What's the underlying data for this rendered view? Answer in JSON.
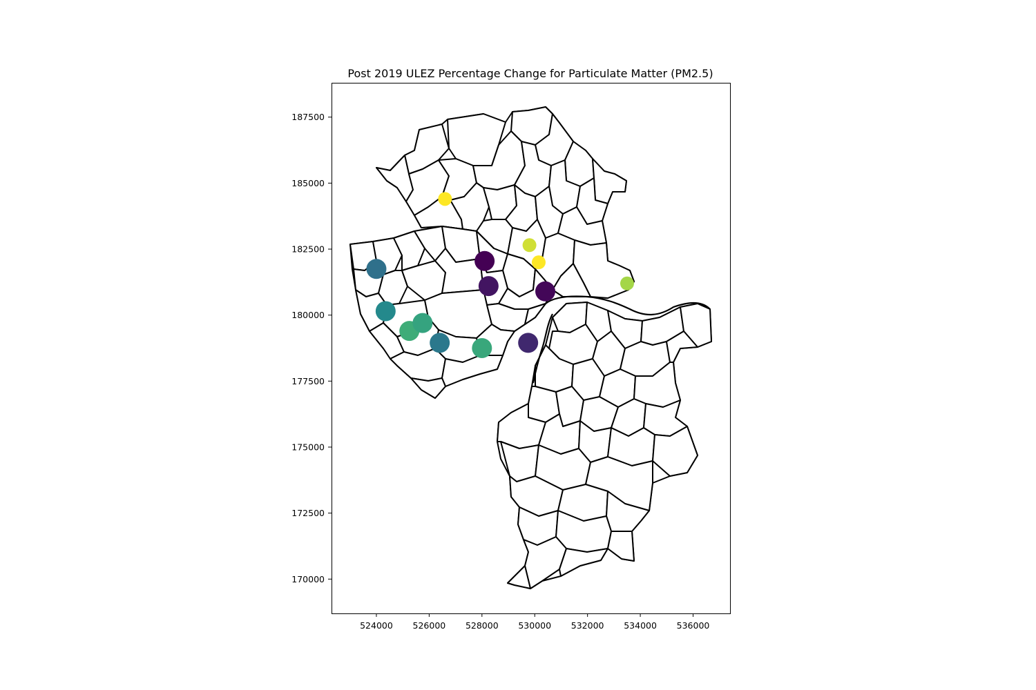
{
  "chart_data": {
    "type": "scatter",
    "title": "Post 2019 ULEZ Percentage Change for Particulate Matter (PM2.5)",
    "xlabel": "",
    "ylabel": "",
    "xlim": [
      522300,
      537400
    ],
    "ylim": [
      168700,
      188800
    ],
    "x_ticks": [
      524000,
      526000,
      528000,
      530000,
      532000,
      534000,
      536000
    ],
    "y_ticks": [
      170000,
      172500,
      175000,
      177500,
      180000,
      182500,
      185000,
      187500
    ],
    "x_tick_labels": [
      "524000",
      "526000",
      "528000",
      "530000",
      "532000",
      "534000",
      "536000"
    ],
    "y_tick_labels": [
      "170000",
      "172500",
      "175000",
      "177500",
      "180000",
      "182500",
      "185000",
      "187500"
    ],
    "grid": false,
    "legend": "none",
    "colormap": "viridis",
    "colormap_stops": [
      "#440154",
      "#3b528b",
      "#21918c",
      "#5ec962",
      "#fde725"
    ],
    "points": [
      {
        "x": 526600,
        "y": 184400,
        "value": 1.0,
        "size": 1.0
      },
      {
        "x": 529800,
        "y": 182650,
        "value": 0.93,
        "size": 1.0
      },
      {
        "x": 530150,
        "y": 182000,
        "value": 1.0,
        "size": 1.0
      },
      {
        "x": 533500,
        "y": 181200,
        "value": 0.86,
        "size": 1.0
      },
      {
        "x": 528100,
        "y": 182050,
        "value": 0.0,
        "size": 1.45
      },
      {
        "x": 528250,
        "y": 181100,
        "value": 0.06,
        "size": 1.45
      },
      {
        "x": 530400,
        "y": 180900,
        "value": 0.02,
        "size": 1.45
      },
      {
        "x": 529750,
        "y": 178950,
        "value": 0.12,
        "size": 1.45
      },
      {
        "x": 524000,
        "y": 181750,
        "value": 0.37,
        "size": 1.45
      },
      {
        "x": 524350,
        "y": 180150,
        "value": 0.47,
        "size": 1.45
      },
      {
        "x": 525250,
        "y": 179400,
        "value": 0.62,
        "size": 1.45
      },
      {
        "x": 525750,
        "y": 179700,
        "value": 0.58,
        "size": 1.45
      },
      {
        "x": 526400,
        "y": 178950,
        "value": 0.4,
        "size": 1.45
      },
      {
        "x": 528000,
        "y": 178750,
        "value": 0.6,
        "size": 1.45
      }
    ]
  }
}
